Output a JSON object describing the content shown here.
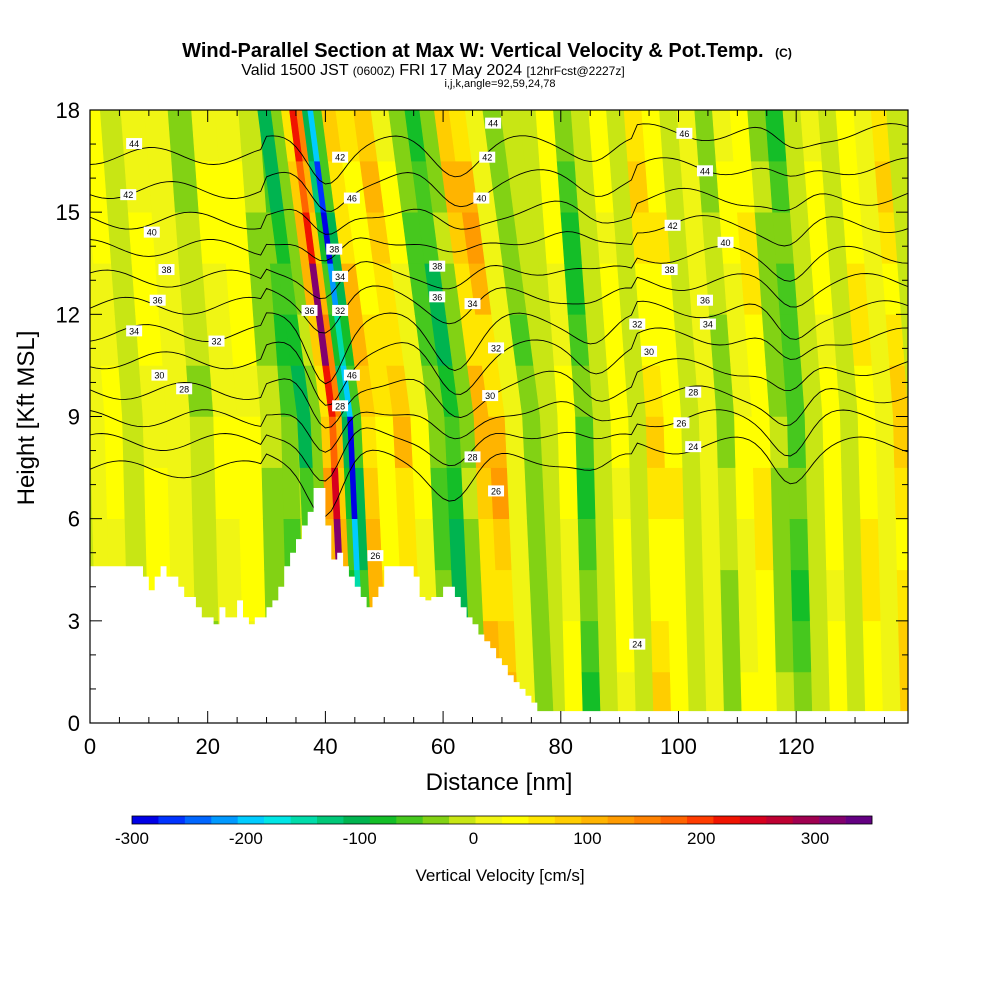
{
  "header": {
    "title_main": "Wind-Parallel Section at Max W: Vertical Velocity & Pot.Temp.",
    "title_c": "(C)",
    "valid_prefix": "Valid 1500 JST",
    "valid_z": "(0600Z)",
    "valid_date": "FRI 17 May 2024",
    "valid_fcst": "[12hrFcst@2227z]",
    "subtitle2": "i,j,k,angle=92,59,24,78"
  },
  "chart_data": {
    "type": "heatmap",
    "xlabel": "Distance [nm]",
    "ylabel": "Height [Kft MSL]",
    "xlim": [
      0,
      139
    ],
    "ylim": [
      0,
      18
    ],
    "x_ticks": [
      0,
      20,
      40,
      60,
      80,
      100,
      120
    ],
    "y_ticks": [
      0,
      3,
      6,
      9,
      12,
      15,
      18
    ],
    "colorbar": {
      "label": "Vertical Velocity [cm/s]",
      "range": [
        -300,
        350
      ],
      "ticks": [
        -300,
        -200,
        -100,
        0,
        100,
        200,
        300
      ],
      "colors": [
        "#0000e6",
        "#0033ff",
        "#0066ff",
        "#0099ff",
        "#00ccff",
        "#00e6e6",
        "#00dcaa",
        "#00c878",
        "#00b450",
        "#14be28",
        "#46c81e",
        "#82d214",
        "#c8e614",
        "#f0f514",
        "#ffff00",
        "#ffe600",
        "#ffcd00",
        "#ffb400",
        "#ff9b00",
        "#ff8200",
        "#ff6400",
        "#ff3c00",
        "#f01400",
        "#d7001e",
        "#be0032",
        "#a00050",
        "#82006e",
        "#640082"
      ]
    },
    "w_columns": [
      {
        "x": 1,
        "w": 10
      },
      {
        "x": 4,
        "w": 35
      },
      {
        "x": 7,
        "w": -20
      },
      {
        "x": 11,
        "w": 40
      },
      {
        "x": 15,
        "w": 5
      },
      {
        "x": 19,
        "w": -25
      },
      {
        "x": 23,
        "w": 30
      },
      {
        "x": 27,
        "w": 45
      },
      {
        "x": 31,
        "w": -30
      },
      {
        "x": 34,
        "w": -70
      },
      {
        "x": 36.5,
        "w": -110
      },
      {
        "x": 38.5,
        "w": -40
      },
      {
        "x": 40,
        "w": 120
      },
      {
        "x": 41.3,
        "w": 330
      },
      {
        "x": 42.3,
        "w": 150
      },
      {
        "x": 43.3,
        "w": -120
      },
      {
        "x": 44.2,
        "w": -300
      },
      {
        "x": 45.2,
        "w": -100
      },
      {
        "x": 47,
        "w": 110
      },
      {
        "x": 50,
        "w": 60
      },
      {
        "x": 53,
        "w": 100
      },
      {
        "x": 56,
        "w": 30
      },
      {
        "x": 59,
        "w": -60
      },
      {
        "x": 61.5,
        "w": -110
      },
      {
        "x": 64,
        "w": -40
      },
      {
        "x": 66.5,
        "w": 110
      },
      {
        "x": 69,
        "w": 120
      },
      {
        "x": 72,
        "w": 20
      },
      {
        "x": 75,
        "w": -45
      },
      {
        "x": 78,
        "w": -15
      },
      {
        "x": 81,
        "w": 35
      },
      {
        "x": 84,
        "w": -80
      },
      {
        "x": 87,
        "w": -20
      },
      {
        "x": 90,
        "w": 45
      },
      {
        "x": 93,
        "w": -10
      },
      {
        "x": 96,
        "w": 75
      },
      {
        "x": 99,
        "w": 50
      },
      {
        "x": 102,
        "w": -10
      },
      {
        "x": 105,
        "w": 20
      },
      {
        "x": 108,
        "w": -30
      },
      {
        "x": 111,
        "w": 30
      },
      {
        "x": 114,
        "w": 60
      },
      {
        "x": 117,
        "w": -40
      },
      {
        "x": 120,
        "w": -70
      },
      {
        "x": 123,
        "w": -15
      },
      {
        "x": 126,
        "w": 40
      },
      {
        "x": 129,
        "w": -10
      },
      {
        "x": 132,
        "w": 60
      },
      {
        "x": 135,
        "w": 25
      },
      {
        "x": 138,
        "w": 80
      }
    ],
    "terrain": [
      {
        "x": 0,
        "h": 4.6
      },
      {
        "x": 8,
        "h": 4.6
      },
      {
        "x": 9,
        "h": 4.3
      },
      {
        "x": 10,
        "h": 3.9
      },
      {
        "x": 11,
        "h": 4.3
      },
      {
        "x": 12,
        "h": 4.6
      },
      {
        "x": 13,
        "h": 4.3
      },
      {
        "x": 14,
        "h": 4.3
      },
      {
        "x": 15,
        "h": 4.0
      },
      {
        "x": 16,
        "h": 3.7
      },
      {
        "x": 17,
        "h": 3.7
      },
      {
        "x": 18,
        "h": 3.4
      },
      {
        "x": 19,
        "h": 3.1
      },
      {
        "x": 20,
        "h": 3.1
      },
      {
        "x": 21,
        "h": 2.9
      },
      {
        "x": 22,
        "h": 3.4
      },
      {
        "x": 23,
        "h": 3.1
      },
      {
        "x": 24,
        "h": 3.1
      },
      {
        "x": 25,
        "h": 3.6
      },
      {
        "x": 26,
        "h": 3.1
      },
      {
        "x": 27,
        "h": 2.9
      },
      {
        "x": 28,
        "h": 3.1
      },
      {
        "x": 29,
        "h": 3.1
      },
      {
        "x": 30,
        "h": 3.4
      },
      {
        "x": 31,
        "h": 3.6
      },
      {
        "x": 32,
        "h": 4.0
      },
      {
        "x": 33,
        "h": 4.6
      },
      {
        "x": 34,
        "h": 5.0
      },
      {
        "x": 35,
        "h": 5.4
      },
      {
        "x": 36,
        "h": 5.8
      },
      {
        "x": 37,
        "h": 6.2
      },
      {
        "x": 38,
        "h": 6.9
      },
      {
        "x": 39,
        "h": 6.9
      },
      {
        "x": 40,
        "h": 5.8
      },
      {
        "x": 41,
        "h": 4.8
      },
      {
        "x": 42,
        "h": 5.0
      },
      {
        "x": 43,
        "h": 4.6
      },
      {
        "x": 44,
        "h": 4.3
      },
      {
        "x": 45,
        "h": 4.0
      },
      {
        "x": 46,
        "h": 3.7
      },
      {
        "x": 47,
        "h": 3.4
      },
      {
        "x": 48,
        "h": 3.7
      },
      {
        "x": 49,
        "h": 4.0
      },
      {
        "x": 50,
        "h": 4.6
      },
      {
        "x": 54,
        "h": 4.6
      },
      {
        "x": 55,
        "h": 4.3
      },
      {
        "x": 56,
        "h": 3.7
      },
      {
        "x": 57,
        "h": 3.6
      },
      {
        "x": 58,
        "h": 3.7
      },
      {
        "x": 59,
        "h": 3.7
      },
      {
        "x": 60,
        "h": 4.0
      },
      {
        "x": 61,
        "h": 4.0
      },
      {
        "x": 62,
        "h": 3.7
      },
      {
        "x": 63,
        "h": 3.4
      },
      {
        "x": 64,
        "h": 3.1
      },
      {
        "x": 65,
        "h": 2.9
      },
      {
        "x": 66,
        "h": 2.6
      },
      {
        "x": 67,
        "h": 2.4
      },
      {
        "x": 68,
        "h": 2.2
      },
      {
        "x": 69,
        "h": 1.9
      },
      {
        "x": 70,
        "h": 1.7
      },
      {
        "x": 71,
        "h": 1.4
      },
      {
        "x": 72,
        "h": 1.2
      },
      {
        "x": 73,
        "h": 1.0
      },
      {
        "x": 74,
        "h": 0.8
      },
      {
        "x": 75,
        "h": 0.6
      },
      {
        "x": 76,
        "h": 0.35
      },
      {
        "x": 139,
        "h": 0.35
      }
    ],
    "isentropes": [
      {
        "theta": 24,
        "base": 7.8,
        "anchor_y": 8.2
      },
      {
        "theta": 26,
        "base": 8.6,
        "anchor_y": 8.8
      },
      {
        "theta": 28,
        "base": 9.3,
        "anchor_y": 9.3
      },
      {
        "theta": 30,
        "base": 10.1,
        "anchor_y": 10.1
      },
      {
        "theta": 32,
        "base": 11.0,
        "anchor_y": 11.0
      },
      {
        "theta": 34,
        "base": 11.8,
        "anchor_y": 11.8
      },
      {
        "theta": 36,
        "base": 12.6,
        "anchor_y": 12.6
      },
      {
        "theta": 38,
        "base": 13.4,
        "anchor_y": 13.4
      },
      {
        "theta": 40,
        "base": 14.3,
        "anchor_y": 14.3
      },
      {
        "theta": 42,
        "base": 15.1,
        "anchor_y": 15.1
      },
      {
        "theta": 44,
        "base": 16.0,
        "anchor_y": 16.0
      },
      {
        "theta": 46,
        "base": 17.0,
        "anchor_y": 17.0
      }
    ],
    "contour_labels": [
      {
        "text": "44",
        "x": 7.5,
        "y": 17.0
      },
      {
        "text": "42",
        "x": 6.5,
        "y": 15.5
      },
      {
        "text": "40",
        "x": 10.5,
        "y": 14.4
      },
      {
        "text": "38",
        "x": 13,
        "y": 13.3
      },
      {
        "text": "36",
        "x": 11.5,
        "y": 12.4
      },
      {
        "text": "34",
        "x": 7.5,
        "y": 11.5
      },
      {
        "text": "32",
        "x": 21.5,
        "y": 11.2
      },
      {
        "text": "30",
        "x": 11.8,
        "y": 10.2
      },
      {
        "text": "28",
        "x": 16,
        "y": 9.8
      },
      {
        "text": "38",
        "x": 41.5,
        "y": 13.9
      },
      {
        "text": "34",
        "x": 42.5,
        "y": 13.1
      },
      {
        "text": "32",
        "x": 42.5,
        "y": 12.1
      },
      {
        "text": "36",
        "x": 37.3,
        "y": 12.1
      },
      {
        "text": "42",
        "x": 42.5,
        "y": 16.6
      },
      {
        "text": "46",
        "x": 44.5,
        "y": 15.4
      },
      {
        "text": "46",
        "x": 44.5,
        "y": 10.2
      },
      {
        "text": "28",
        "x": 42.5,
        "y": 9.3
      },
      {
        "text": "26",
        "x": 48.5,
        "y": 4.9
      },
      {
        "text": "44",
        "x": 68.5,
        "y": 17.6
      },
      {
        "text": "42",
        "x": 67.5,
        "y": 16.6
      },
      {
        "text": "40",
        "x": 66.5,
        "y": 15.4
      },
      {
        "text": "38",
        "x": 59,
        "y": 13.4
      },
      {
        "text": "36",
        "x": 59,
        "y": 12.5
      },
      {
        "text": "34",
        "x": 65,
        "y": 12.3
      },
      {
        "text": "32",
        "x": 69,
        "y": 11.0
      },
      {
        "text": "30",
        "x": 68,
        "y": 9.6
      },
      {
        "text": "28",
        "x": 65,
        "y": 7.8
      },
      {
        "text": "26",
        "x": 69,
        "y": 6.8
      },
      {
        "text": "46",
        "x": 101,
        "y": 17.3
      },
      {
        "text": "44",
        "x": 104.5,
        "y": 16.2
      },
      {
        "text": "42",
        "x": 99,
        "y": 14.6
      },
      {
        "text": "40",
        "x": 108,
        "y": 14.1
      },
      {
        "text": "38",
        "x": 98.5,
        "y": 13.3
      },
      {
        "text": "36",
        "x": 104.5,
        "y": 12.4
      },
      {
        "text": "34",
        "x": 105,
        "y": 11.7
      },
      {
        "text": "32",
        "x": 93,
        "y": 11.7
      },
      {
        "text": "30",
        "x": 95,
        "y": 10.9
      },
      {
        "text": "28",
        "x": 102.5,
        "y": 9.7
      },
      {
        "text": "26",
        "x": 100.5,
        "y": 8.8
      },
      {
        "text": "24",
        "x": 102.5,
        "y": 8.1
      },
      {
        "text": "24",
        "x": 93,
        "y": 2.3
      }
    ]
  }
}
